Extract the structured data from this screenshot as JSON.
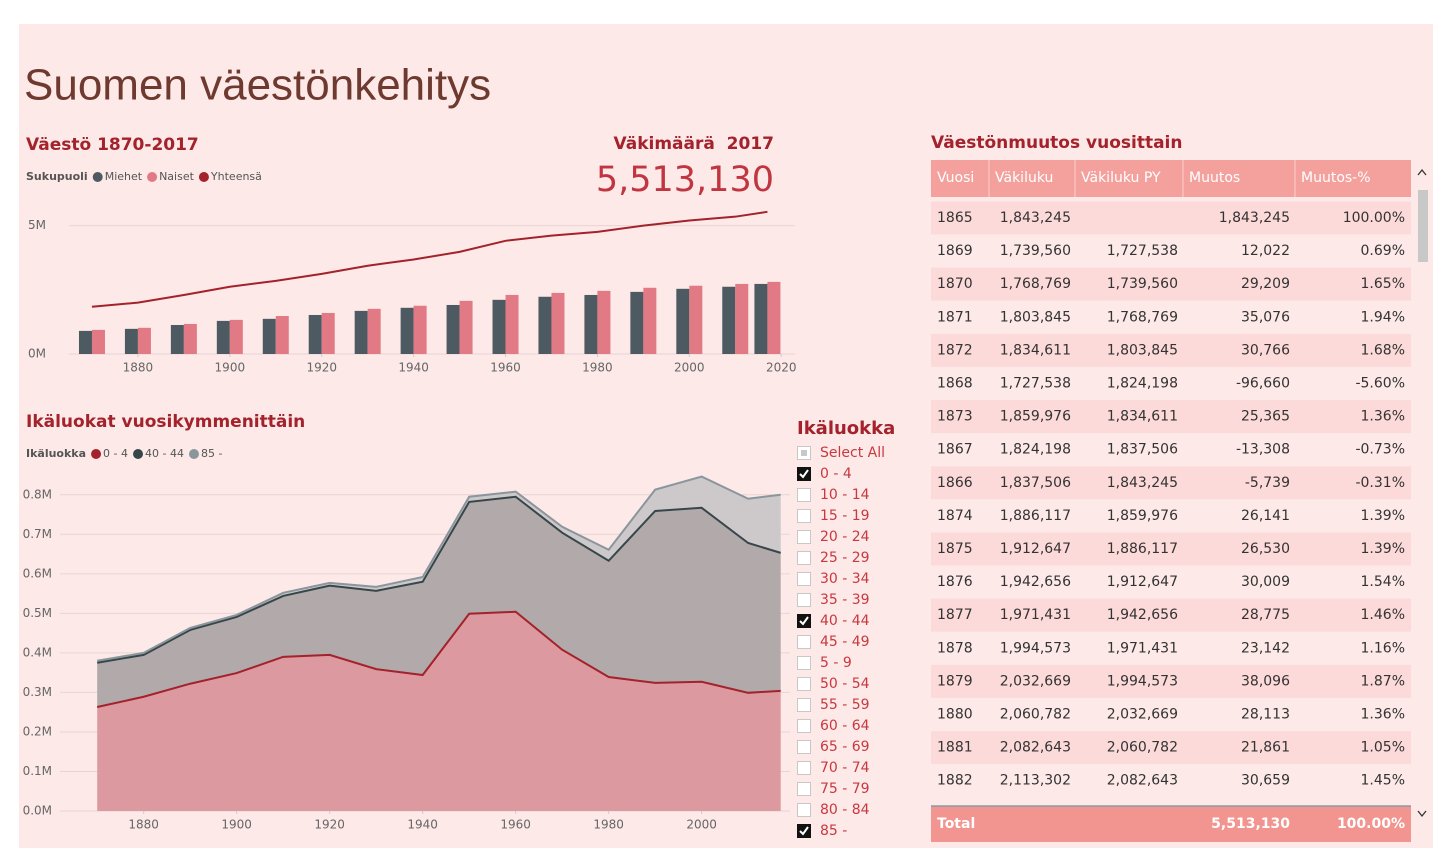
{
  "title": "Suomen väestönkehitys",
  "chart_data": [
    {
      "type": "combo",
      "title": "Väestö 1870-2017",
      "legend_title": "Sukupuoli",
      "x": [
        1870,
        1880,
        1890,
        1900,
        1910,
        1920,
        1930,
        1940,
        1950,
        1960,
        1970,
        1980,
        1990,
        2000,
        2010,
        2017
      ],
      "series": [
        {
          "name": "Miehet",
          "type": "bar",
          "color": "#4d5a61",
          "values": [
            900000,
            980000,
            1130000,
            1290000,
            1370000,
            1520000,
            1680000,
            1800000,
            1910000,
            2110000,
            2230000,
            2300000,
            2420000,
            2540000,
            2620000,
            2730000
          ]
        },
        {
          "name": "Naiset",
          "type": "bar",
          "color": "#e17a84",
          "values": [
            940000,
            1020000,
            1170000,
            1330000,
            1480000,
            1600000,
            1760000,
            1880000,
            2070000,
            2300000,
            2380000,
            2460000,
            2580000,
            2660000,
            2730000,
            2810000
          ]
        },
        {
          "name": "Yhteensä",
          "type": "line",
          "color": "#a3222b",
          "values": [
            1840000,
            2000000,
            2300000,
            2620000,
            2850000,
            3120000,
            3440000,
            3680000,
            3980000,
            4410000,
            4610000,
            4760000,
            5000000,
            5200000,
            5350000,
            5540000
          ]
        }
      ],
      "xlim": [
        1865,
        2023
      ],
      "xticks": [
        1880,
        1900,
        1920,
        1940,
        1960,
        1980,
        2000,
        2020
      ],
      "ylim": [
        0,
        6000000
      ],
      "yticks": [
        {
          "value": 0,
          "label": "0M"
        },
        {
          "value": 5000000,
          "label": "5M"
        }
      ],
      "grid": true
    },
    {
      "type": "area",
      "stacked": true,
      "title": "Ikäluokat vuosikymmenittäin",
      "legend_title": "Ikäluokka",
      "x": [
        1870,
        1880,
        1890,
        1900,
        1910,
        1920,
        1930,
        1940,
        1950,
        1960,
        1970,
        1980,
        1990,
        2000,
        2010,
        2017
      ],
      "series": [
        {
          "name": "0 - 4",
          "color": "#a3222b",
          "fill": "#dc9aa0",
          "values": [
            263000,
            289000,
            322000,
            349000,
            390000,
            395000,
            359000,
            344000,
            499000,
            504000,
            408000,
            339000,
            324000,
            327000,
            299000,
            304000
          ]
        },
        {
          "name": "40 - 44",
          "color": "#374649",
          "fill": "#b1a9aa",
          "values": [
            112000,
            106000,
            136000,
            142000,
            154000,
            175000,
            198000,
            236000,
            283000,
            291000,
            296000,
            294000,
            435000,
            440000,
            379000,
            349000
          ]
        },
        {
          "name": "85 -",
          "color": "#8a959c",
          "fill": "#cdc9ca",
          "values": [
            5000,
            5000,
            5000,
            5000,
            8000,
            7000,
            10000,
            12000,
            13000,
            13000,
            15000,
            28000,
            54000,
            79000,
            112000,
            147000
          ]
        }
      ],
      "xlim": [
        1862,
        2019
      ],
      "xticks": [
        1880,
        1900,
        1920,
        1940,
        1960,
        1980,
        2000
      ],
      "ylim": [
        0,
        850000
      ],
      "yticks": [
        {
          "value": 0,
          "label": "0.0M"
        },
        {
          "value": 100000,
          "label": "0.1M"
        },
        {
          "value": 200000,
          "label": "0.2M"
        },
        {
          "value": 300000,
          "label": "0.3M"
        },
        {
          "value": 400000,
          "label": "0.4M"
        },
        {
          "value": 500000,
          "label": "0.5M"
        },
        {
          "value": 600000,
          "label": "0.6M"
        },
        {
          "value": 700000,
          "label": "0.7M"
        },
        {
          "value": 800000,
          "label": "0.8M"
        }
      ],
      "grid": true
    }
  ],
  "card": {
    "title": "Väkimäärä  2017",
    "value": "5,513,130"
  },
  "slicer": {
    "title": "Ikäluokka",
    "items": [
      {
        "label": "Select All",
        "state": "partial"
      },
      {
        "label": "0 - 4",
        "state": "checked"
      },
      {
        "label": "10 - 14",
        "state": "unchecked"
      },
      {
        "label": "15 - 19",
        "state": "unchecked"
      },
      {
        "label": "20 - 24",
        "state": "unchecked"
      },
      {
        "label": "25 - 29",
        "state": "unchecked"
      },
      {
        "label": "30 - 34",
        "state": "unchecked"
      },
      {
        "label": "35 - 39",
        "state": "unchecked"
      },
      {
        "label": "40 - 44",
        "state": "checked"
      },
      {
        "label": "45 - 49",
        "state": "unchecked"
      },
      {
        "label": "5 - 9",
        "state": "unchecked"
      },
      {
        "label": "50 - 54",
        "state": "unchecked"
      },
      {
        "label": "55 - 59",
        "state": "unchecked"
      },
      {
        "label": "60 - 64",
        "state": "unchecked"
      },
      {
        "label": "65 - 69",
        "state": "unchecked"
      },
      {
        "label": "70 - 74",
        "state": "unchecked"
      },
      {
        "label": "75 - 79",
        "state": "unchecked"
      },
      {
        "label": "80 - 84",
        "state": "unchecked"
      },
      {
        "label": "85 -",
        "state": "checked"
      }
    ]
  },
  "table": {
    "title": "Väestönmuutos vuosittain",
    "columns": [
      "Vuosi",
      "Väkiluku",
      "Väkiluku PY",
      "Muutos",
      "Muutos-%"
    ],
    "rows": [
      [
        "1865",
        "1,843,245",
        null,
        "1,843,245",
        "100.00%"
      ],
      [
        "1869",
        "1,739,560",
        "1,727,538",
        "12,022",
        "0.69%"
      ],
      [
        "1870",
        "1,768,769",
        "1,739,560",
        "29,209",
        "1.65%"
      ],
      [
        "1871",
        "1,803,845",
        "1,768,769",
        "35,076",
        "1.94%"
      ],
      [
        "1872",
        "1,834,611",
        "1,803,845",
        "30,766",
        "1.68%"
      ],
      [
        "1868",
        "1,727,538",
        "1,824,198",
        "-96,660",
        "-5.60%"
      ],
      [
        "1873",
        "1,859,976",
        "1,834,611",
        "25,365",
        "1.36%"
      ],
      [
        "1867",
        "1,824,198",
        "1,837,506",
        "-13,308",
        "-0.73%"
      ],
      [
        "1866",
        "1,837,506",
        "1,843,245",
        "-5,739",
        "-0.31%"
      ],
      [
        "1874",
        "1,886,117",
        "1,859,976",
        "26,141",
        "1.39%"
      ],
      [
        "1875",
        "1,912,647",
        "1,886,117",
        "26,530",
        "1.39%"
      ],
      [
        "1876",
        "1,942,656",
        "1,912,647",
        "30,009",
        "1.54%"
      ],
      [
        "1877",
        "1,971,431",
        "1,942,656",
        "28,775",
        "1.46%"
      ],
      [
        "1878",
        "1,994,573",
        "1,971,431",
        "23,142",
        "1.16%"
      ],
      [
        "1879",
        "2,032,669",
        "1,994,573",
        "38,096",
        "1.87%"
      ],
      [
        "1880",
        "2,060,782",
        "2,032,669",
        "28,113",
        "1.36%"
      ],
      [
        "1881",
        "2,082,643",
        "2,060,782",
        "21,861",
        "1.05%"
      ],
      [
        "1882",
        "2,113,302",
        "2,082,643",
        "30,659",
        "1.45%"
      ]
    ],
    "total": [
      "Total",
      null,
      null,
      "5,513,130",
      "100.00%"
    ]
  }
}
